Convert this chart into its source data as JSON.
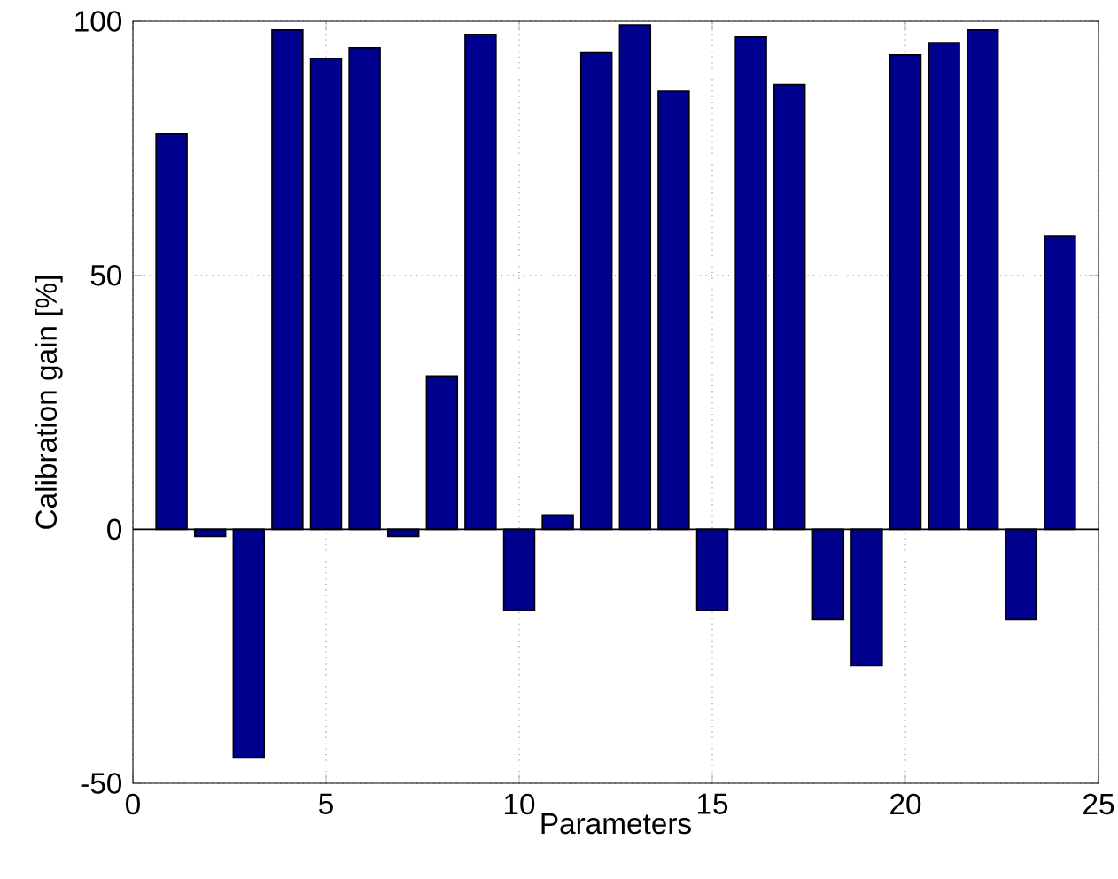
{
  "chart_data": {
    "type": "bar",
    "xlabel": "Parameters",
    "ylabel": "Calibration gain [%]",
    "x": [
      1,
      2,
      3,
      4,
      5,
      6,
      7,
      8,
      9,
      10,
      11,
      12,
      13,
      14,
      15,
      16,
      17,
      18,
      19,
      20,
      21,
      22,
      23,
      24
    ],
    "values": [
      77.9,
      -1.4,
      -45,
      98.3,
      92.7,
      94.8,
      -1.4,
      30.2,
      97.4,
      -16,
      2.8,
      93.8,
      99.3,
      86.2,
      -16,
      96.9,
      87.5,
      -17.8,
      -26.9,
      93.4,
      95.8,
      98.3,
      -17.8,
      57.8
    ],
    "color": "#00008f",
    "xlim": [
      0,
      25
    ],
    "xticks": [
      0,
      5,
      10,
      15,
      20,
      25
    ],
    "ylim": [
      -50,
      100
    ],
    "yticks": [
      -50,
      0,
      50,
      100
    ],
    "grid": true
  }
}
